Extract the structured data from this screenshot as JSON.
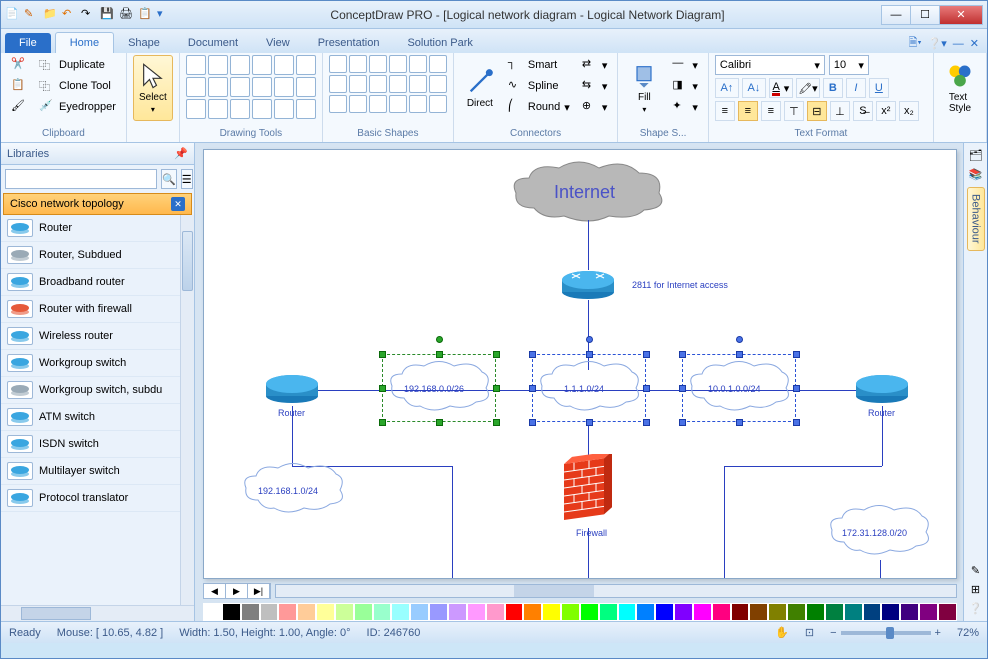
{
  "window": {
    "title": "ConceptDraw PRO - [Logical network diagram - Logical Network Diagram]"
  },
  "tabs": {
    "file": "File",
    "items": [
      "Home",
      "Shape",
      "Document",
      "View",
      "Presentation",
      "Solution Park"
    ],
    "active": 0
  },
  "ribbon": {
    "clipboard": {
      "label": "Clipboard",
      "duplicate": "Duplicate",
      "clone": "Clone Tool",
      "eyedropper": "Eyedropper"
    },
    "select": {
      "label": "Select"
    },
    "drawing": {
      "label": "Drawing Tools"
    },
    "shapes": {
      "label": "Basic Shapes"
    },
    "connectors": {
      "label": "Connectors",
      "direct": "Direct",
      "smart": "Smart",
      "spline": "Spline",
      "round": "Round"
    },
    "fill": {
      "label": "Fill"
    },
    "shapestyle": {
      "label": "Shape S..."
    },
    "textformat": {
      "label": "Text Format",
      "font": "Calibri",
      "size": "10"
    },
    "textstyle": {
      "label": "Text\nStyle"
    }
  },
  "libraries": {
    "title": "Libraries",
    "category": "Cisco network topology",
    "items": [
      "Router",
      "Router, Subdued",
      "Broadband router",
      "Router with firewall",
      "Wireless router",
      "Workgroup switch",
      "Workgroup switch, subdu",
      "ATM switch",
      "ISDN switch",
      "Multilayer switch",
      "Protocol translator"
    ]
  },
  "diagram": {
    "internet": "Internet",
    "router_note": "2811 for Internet access",
    "nets": [
      "192.168.0.0/26",
      "1.1.1.0/24",
      "10.0.1.0.0/24"
    ],
    "router_left": "Router",
    "router_right": "Router",
    "net_bl": "192.168.1.0/24",
    "net_br": "172.31.128.0/20",
    "firewall": "Firewall"
  },
  "palette_colors": [
    "#ffffff",
    "#000000",
    "#7f7f7f",
    "#bfbfbf",
    "#ff9999",
    "#ffcc99",
    "#ffff99",
    "#ccff99",
    "#99ff99",
    "#99ffcc",
    "#99ffff",
    "#99ccff",
    "#9999ff",
    "#cc99ff",
    "#ff99ff",
    "#ff99cc",
    "#ff0000",
    "#ff8000",
    "#ffff00",
    "#80ff00",
    "#00ff00",
    "#00ff80",
    "#00ffff",
    "#0080ff",
    "#0000ff",
    "#8000ff",
    "#ff00ff",
    "#ff0080",
    "#800000",
    "#804000",
    "#808000",
    "#408000",
    "#008000",
    "#008040",
    "#008080",
    "#004080",
    "#000080",
    "#400080",
    "#800080",
    "#800040"
  ],
  "status": {
    "ready": "Ready",
    "mouse": "Mouse: [ 10.65, 4.82 ]",
    "dims": "Width: 1.50,  Height: 1.00,  Angle: 0°",
    "id": "ID: 246760",
    "zoom": "72%"
  },
  "sidepanel": "Behaviour"
}
